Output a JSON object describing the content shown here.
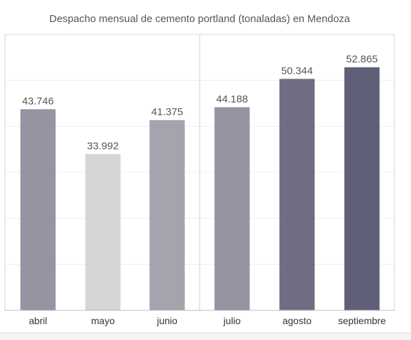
{
  "chart_data": {
    "type": "bar",
    "title": "Despacho mensual de cemento portland (tonaladas) en Mendoza",
    "xlabel": "",
    "ylabel": "",
    "categories": [
      "abril",
      "mayo",
      "junio",
      "julio",
      "agosto",
      "septiembre"
    ],
    "values": [
      43746,
      33992,
      41375,
      44188,
      50344,
      52865
    ],
    "value_labels": [
      "43.746",
      "33.992",
      "41.375",
      "44.188",
      "50.344",
      "52.865"
    ],
    "colors": [
      "#9494a3",
      "#d6d6d6",
      "#a4a4af",
      "#9494a3",
      "#6f6d84",
      "#5f5f78"
    ],
    "ylim": [
      0,
      60000
    ],
    "grid": true,
    "legend": "none"
  }
}
